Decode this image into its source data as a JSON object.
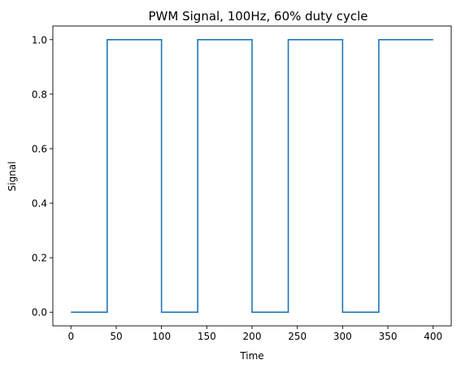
{
  "chart_data": {
    "type": "line",
    "title": "PWM Signal, 100Hz, 60% duty cycle",
    "xlabel": "Time",
    "ylabel": "Signal",
    "xlim": [
      -20,
      420
    ],
    "ylim": [
      -0.05,
      1.05
    ],
    "xticks": [
      0,
      50,
      100,
      150,
      200,
      250,
      300,
      350,
      400
    ],
    "yticks": [
      0.0,
      0.2,
      0.4,
      0.6,
      0.8,
      1.0
    ],
    "ytick_format": "0.0",
    "grid": false,
    "series": [
      {
        "color": "#1f77b4",
        "x": [
          0,
          40,
          40,
          100,
          100,
          140,
          140,
          200,
          200,
          240,
          240,
          300,
          300,
          340,
          340,
          400
        ],
        "y": [
          0,
          0,
          1,
          1,
          0,
          0,
          1,
          1,
          0,
          0,
          1,
          1,
          0,
          0,
          1,
          1
        ]
      }
    ]
  }
}
